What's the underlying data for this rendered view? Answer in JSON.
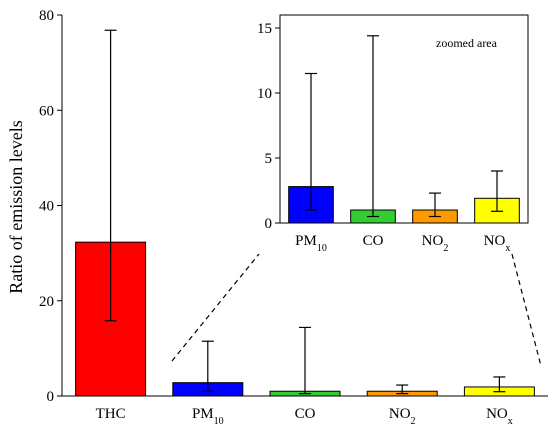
{
  "chart_data": [
    {
      "type": "bar",
      "ylabel": "Ratio of emission levels",
      "ylim": [
        0,
        80
      ],
      "yticks": [
        0,
        20,
        40,
        60,
        80
      ],
      "categories": [
        {
          "base": "THC",
          "sub": ""
        },
        {
          "base": "PM",
          "sub": "10"
        },
        {
          "base": "CO",
          "sub": ""
        },
        {
          "base": "NO",
          "sub": "2"
        },
        {
          "base": "NO",
          "sub": "x"
        }
      ],
      "values": [
        32.3,
        2.8,
        1.0,
        1.0,
        1.9
      ],
      "error_low": [
        15.8,
        1.0,
        0.5,
        0.5,
        0.9
      ],
      "error_high": [
        76.8,
        11.5,
        14.4,
        2.3,
        4.0
      ],
      "colors": [
        "#ff0000",
        "#0000ff",
        "#33cc33",
        "#ff9900",
        "#ffff00"
      ]
    },
    {
      "type": "bar",
      "annotation": "zoomed area",
      "ylim": [
        0,
        16
      ],
      "yticks": [
        0,
        5,
        10,
        15
      ],
      "categories": [
        {
          "base": "PM",
          "sub": "10"
        },
        {
          "base": "CO",
          "sub": ""
        },
        {
          "base": "NO",
          "sub": "2"
        },
        {
          "base": "NO",
          "sub": "x"
        }
      ],
      "values": [
        2.8,
        1.0,
        1.0,
        1.9
      ],
      "error_low": [
        1.0,
        0.5,
        0.5,
        0.9
      ],
      "error_high": [
        11.5,
        14.4,
        2.3,
        4.0
      ],
      "colors": [
        "#0000ff",
        "#33cc33",
        "#ff9900",
        "#ffff00"
      ]
    }
  ]
}
